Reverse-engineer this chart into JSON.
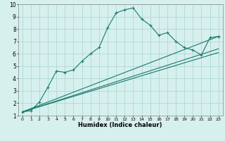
{
  "title": "",
  "xlabel": "Humidex (Indice chaleur)",
  "bg_color": "#d6f0ee",
  "grid_color": "#b0d8d4",
  "line_color": "#1a7a6e",
  "xlim": [
    -0.5,
    23.5
  ],
  "ylim": [
    1,
    10
  ],
  "xticks": [
    0,
    1,
    2,
    3,
    4,
    5,
    6,
    7,
    8,
    9,
    10,
    11,
    12,
    13,
    14,
    15,
    16,
    17,
    18,
    19,
    20,
    21,
    22,
    23
  ],
  "yticks": [
    1,
    2,
    3,
    4,
    5,
    6,
    7,
    8,
    9,
    10
  ],
  "line1_x": [
    0,
    1,
    2,
    3,
    4,
    5,
    6,
    7,
    8,
    9,
    10,
    11,
    12,
    13,
    14,
    15,
    16,
    17,
    18,
    19,
    20,
    21,
    22,
    23
  ],
  "line1_y": [
    1.3,
    1.4,
    2.1,
    3.3,
    4.6,
    4.5,
    4.7,
    5.4,
    6.0,
    6.5,
    8.1,
    9.3,
    9.55,
    9.7,
    8.8,
    8.3,
    7.5,
    7.7,
    7.0,
    6.5,
    6.3,
    5.9,
    7.3,
    7.4
  ],
  "line2_x": [
    0,
    23
  ],
  "line2_y": [
    1.3,
    6.1
  ],
  "line3_x": [
    0,
    23
  ],
  "line3_y": [
    1.3,
    6.4
  ],
  "line4_x": [
    0,
    23
  ],
  "line4_y": [
    1.3,
    7.4
  ]
}
